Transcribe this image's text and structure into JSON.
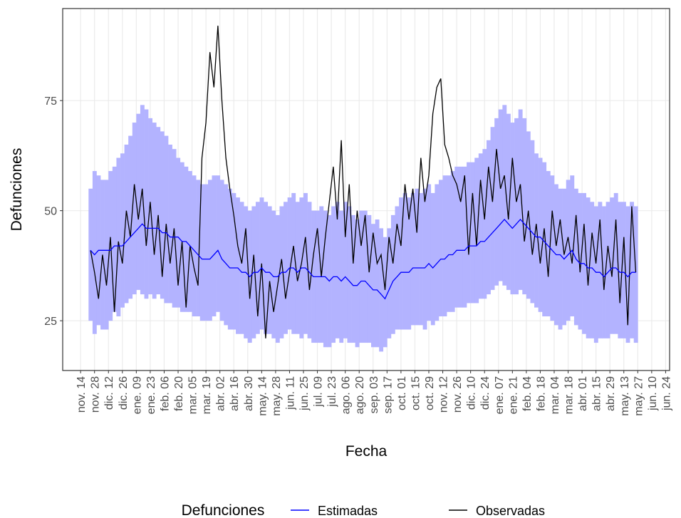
{
  "chart_data": {
    "type": "line",
    "x_label": "Fecha",
    "y_label": "Defunciones",
    "legend_title": "Defunciones",
    "legend_position": "bottom",
    "grid": true,
    "xlim": [
      -18,
      592
    ],
    "ylim": [
      13.7,
      95.9
    ],
    "yticks": [
      25,
      50,
      75
    ],
    "xticks": [
      {
        "value": 0,
        "label": "nov. 14"
      },
      {
        "value": 14,
        "label": "nov. 28"
      },
      {
        "value": 28,
        "label": "dic. 12"
      },
      {
        "value": 42,
        "label": "dic. 26"
      },
      {
        "value": 56,
        "label": "ene. 09"
      },
      {
        "value": 70,
        "label": "ene. 23"
      },
      {
        "value": 84,
        "label": "feb. 06"
      },
      {
        "value": 98,
        "label": "feb. 20"
      },
      {
        "value": 112,
        "label": "mar. 05"
      },
      {
        "value": 126,
        "label": "mar. 19"
      },
      {
        "value": 140,
        "label": "abr. 02"
      },
      {
        "value": 154,
        "label": "abr. 16"
      },
      {
        "value": 168,
        "label": "abr. 30"
      },
      {
        "value": 182,
        "label": "may. 14"
      },
      {
        "value": 196,
        "label": "may. 28"
      },
      {
        "value": 210,
        "label": "jun. 11"
      },
      {
        "value": 224,
        "label": "jun. 25"
      },
      {
        "value": 238,
        "label": "jul. 09"
      },
      {
        "value": 252,
        "label": "jul. 23"
      },
      {
        "value": 266,
        "label": "ago. 06"
      },
      {
        "value": 280,
        "label": "ago. 20"
      },
      {
        "value": 294,
        "label": "sep. 03"
      },
      {
        "value": 308,
        "label": "sep. 17"
      },
      {
        "value": 322,
        "label": "oct. 01"
      },
      {
        "value": 336,
        "label": "oct. 15"
      },
      {
        "value": 350,
        "label": "oct. 29"
      },
      {
        "value": 364,
        "label": "nov. 12"
      },
      {
        "value": 378,
        "label": "nov. 26"
      },
      {
        "value": 392,
        "label": "dic. 10"
      },
      {
        "value": 406,
        "label": "dic. 24"
      },
      {
        "value": 420,
        "label": "ene. 07"
      },
      {
        "value": 434,
        "label": "ene. 21"
      },
      {
        "value": 448,
        "label": "feb. 04"
      },
      {
        "value": 462,
        "label": "feb. 18"
      },
      {
        "value": 476,
        "label": "mar. 04"
      },
      {
        "value": 490,
        "label": "mar. 18"
      },
      {
        "value": 504,
        "label": "abr. 01"
      },
      {
        "value": 518,
        "label": "abr. 15"
      },
      {
        "value": 532,
        "label": "abr. 29"
      },
      {
        "value": 546,
        "label": "may. 13"
      },
      {
        "value": 560,
        "label": "may. 27"
      },
      {
        "value": 574,
        "label": "jun. 10"
      },
      {
        "value": 588,
        "label": "jun. 24"
      }
    ],
    "x": [
      10,
      14,
      18,
      22,
      26,
      30,
      34,
      38,
      42,
      46,
      50,
      54,
      58,
      62,
      66,
      70,
      74,
      78,
      82,
      86,
      90,
      94,
      98,
      102,
      106,
      110,
      114,
      118,
      122,
      126,
      130,
      134,
      138,
      142,
      146,
      150,
      154,
      158,
      162,
      166,
      170,
      174,
      178,
      182,
      186,
      190,
      194,
      198,
      202,
      206,
      210,
      214,
      218,
      222,
      226,
      230,
      234,
      238,
      242,
      246,
      250,
      254,
      258,
      262,
      266,
      270,
      274,
      278,
      282,
      286,
      290,
      294,
      298,
      302,
      306,
      310,
      314,
      318,
      322,
      326,
      330,
      334,
      338,
      342,
      346,
      350,
      354,
      358,
      362,
      366,
      370,
      374,
      378,
      382,
      386,
      390,
      394,
      398,
      402,
      406,
      410,
      414,
      418,
      422,
      426,
      430,
      434,
      438,
      442,
      446,
      450,
      454,
      458,
      462,
      466,
      470,
      474,
      478,
      482,
      486,
      490,
      494,
      498,
      502,
      506,
      510,
      514,
      518,
      522,
      526,
      530,
      534,
      538,
      542,
      546,
      550,
      554,
      558
    ],
    "series": [
      {
        "name": "Estimadas",
        "color": "#0000ff",
        "band_color": "#b3b3ff",
        "values": [
          41,
          40,
          41,
          41,
          41,
          41,
          42,
          42,
          42,
          43,
          44,
          45,
          46,
          47,
          46,
          46,
          46,
          46,
          45,
          45,
          44,
          44,
          44,
          43,
          43,
          42,
          41,
          40,
          39,
          39,
          39,
          40,
          41,
          39,
          38,
          37,
          37,
          37,
          36,
          36,
          35,
          36,
          36,
          37,
          36,
          36,
          35,
          35,
          36,
          36,
          37,
          37,
          36,
          37,
          37,
          36,
          35,
          35,
          35,
          35,
          34,
          35,
          35,
          34,
          35,
          34,
          33,
          33,
          34,
          34,
          33,
          32,
          32,
          31,
          30,
          32,
          34,
          35,
          36,
          36,
          36,
          37,
          37,
          37,
          37,
          38,
          37,
          38,
          39,
          39,
          40,
          40,
          41,
          41,
          41,
          42,
          42,
          42,
          43,
          43,
          44,
          45,
          46,
          47,
          48,
          47,
          46,
          47,
          48,
          47,
          46,
          45,
          44,
          44,
          43,
          42,
          41,
          40,
          40,
          39,
          40,
          41,
          39,
          38,
          38,
          37,
          37,
          36,
          36,
          35,
          36,
          37,
          37,
          36,
          36,
          35,
          36,
          36
        ],
        "lower": [
          25,
          22,
          24,
          23,
          23,
          25,
          27,
          26,
          28,
          29,
          30,
          31,
          32,
          31,
          30,
          31,
          30,
          31,
          30,
          29,
          29,
          28,
          28,
          27,
          27,
          27,
          26,
          26,
          25,
          25,
          25,
          26,
          27,
          25,
          24,
          23,
          23,
          22,
          22,
          21,
          20,
          21,
          22,
          23,
          22,
          22,
          21,
          20,
          21,
          22,
          23,
          22,
          22,
          21,
          22,
          21,
          20,
          20,
          20,
          19,
          19,
          20,
          21,
          20,
          21,
          20,
          20,
          19,
          20,
          20,
          20,
          19,
          19,
          18,
          19,
          21,
          22,
          23,
          23,
          23,
          23,
          24,
          24,
          24,
          23,
          25,
          24,
          25,
          26,
          26,
          27,
          27,
          28,
          28,
          28,
          29,
          29,
          29,
          30,
          30,
          31,
          32,
          33,
          34,
          33,
          32,
          31,
          31,
          32,
          31,
          30,
          29,
          28,
          27,
          26,
          26,
          25,
          24,
          23,
          24,
          25,
          26,
          24,
          23,
          22,
          21,
          21,
          20,
          21,
          21,
          21,
          22,
          22,
          21,
          21,
          20,
          21,
          20
        ],
        "upper": [
          55,
          59,
          58,
          57,
          57,
          59,
          60,
          62,
          63,
          65,
          67,
          70,
          72,
          74,
          73,
          71,
          70,
          69,
          68,
          67,
          65,
          64,
          62,
          61,
          60,
          59,
          58,
          57,
          56,
          56,
          57,
          58,
          58,
          57,
          56,
          55,
          54,
          53,
          52,
          51,
          50,
          51,
          52,
          53,
          52,
          51,
          50,
          49,
          51,
          52,
          53,
          54,
          52,
          53,
          54,
          52,
          50,
          50,
          51,
          50,
          49,
          51,
          52,
          50,
          52,
          51,
          49,
          48,
          50,
          50,
          49,
          47,
          48,
          46,
          44,
          46,
          49,
          51,
          53,
          54,
          53,
          54,
          55,
          54,
          55,
          56,
          54,
          56,
          57,
          58,
          58,
          59,
          60,
          60,
          60,
          61,
          61,
          62,
          63,
          64,
          66,
          69,
          71,
          73,
          74,
          72,
          70,
          71,
          73,
          71,
          68,
          66,
          63,
          62,
          61,
          59,
          58,
          56,
          55,
          55,
          57,
          58,
          55,
          54,
          54,
          53,
          52,
          51,
          52,
          51,
          52,
          53,
          54,
          52,
          52,
          51,
          52,
          51
        ]
      },
      {
        "name": "Observadas",
        "color": "#000000",
        "values": [
          41,
          36,
          30,
          40,
          33,
          44,
          27,
          43,
          38,
          50,
          44,
          56,
          48,
          55,
          42,
          52,
          40,
          49,
          35,
          47,
          38,
          46,
          33,
          43,
          28,
          42,
          37,
          33,
          62,
          70,
          86,
          78,
          92,
          75,
          62,
          55,
          49,
          42,
          38,
          46,
          30,
          40,
          26,
          38,
          21,
          34,
          27,
          33,
          39,
          30,
          36,
          42,
          34,
          38,
          44,
          32,
          40,
          46,
          35,
          44,
          52,
          60,
          48,
          66,
          44,
          56,
          38,
          50,
          42,
          49,
          36,
          45,
          38,
          40,
          32,
          44,
          38,
          47,
          42,
          56,
          48,
          55,
          45,
          62,
          52,
          58,
          72,
          78,
          80,
          65,
          62,
          58,
          56,
          52,
          58,
          40,
          54,
          42,
          57,
          48,
          60,
          52,
          64,
          55,
          58,
          48,
          62,
          52,
          56,
          43,
          50,
          40,
          47,
          38,
          46,
          35,
          50,
          42,
          48,
          40,
          44,
          38,
          49,
          36,
          47,
          33,
          45,
          38,
          48,
          32,
          42,
          35,
          48,
          29,
          44,
          24,
          51,
          36
        ]
      }
    ]
  }
}
